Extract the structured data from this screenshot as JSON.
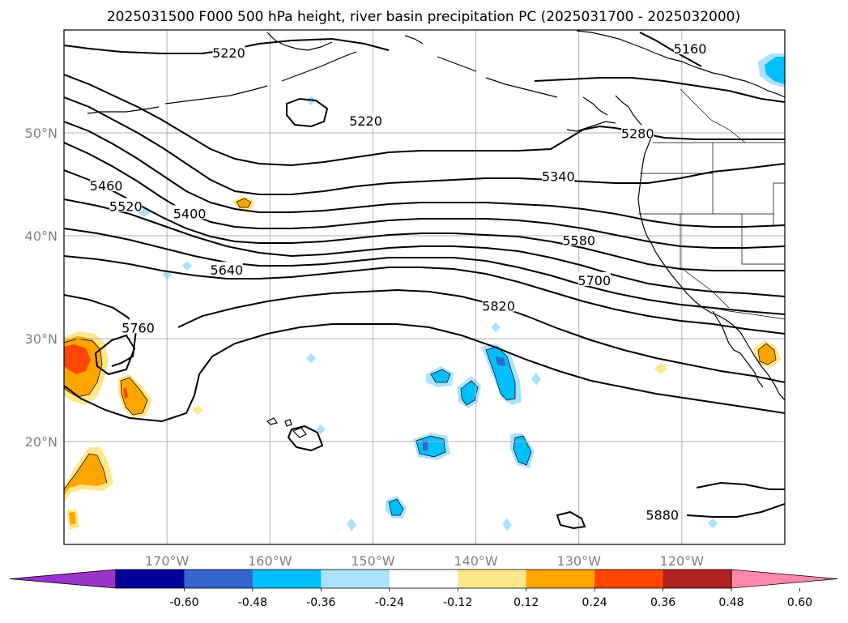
{
  "title": "2025031500 F000 500 hPa height, river basin precipitation PC (2025031700 - 2025032000)",
  "x_ticks": [
    {
      "lon": -170,
      "label": "170°W"
    },
    {
      "lon": -160,
      "label": "160°W"
    },
    {
      "lon": -150,
      "label": "150°W"
    },
    {
      "lon": -140,
      "label": "140°W"
    },
    {
      "lon": -130,
      "label": "130°W"
    },
    {
      "lon": -120,
      "label": "120°W"
    }
  ],
  "y_ticks": [
    {
      "lat": 50,
      "label": "50°N"
    },
    {
      "lat": 40,
      "label": "40°N"
    },
    {
      "lat": 30,
      "label": "30°N"
    },
    {
      "lat": 20,
      "label": "20°N"
    }
  ],
  "map_extent": {
    "lon_min": -180,
    "lon_max": -110,
    "lat_min": 10,
    "lat_max": 60
  },
  "contour_labels": [
    {
      "text": "5160",
      "lon": -119.2,
      "lat": 58.1
    },
    {
      "text": "5220",
      "lon": -164.0,
      "lat": 57.7
    },
    {
      "text": "5220",
      "lon": -150.7,
      "lat": 51.1
    },
    {
      "text": "5280",
      "lon": -124.3,
      "lat": 49.9
    },
    {
      "text": "5340",
      "lon": -132.0,
      "lat": 45.7
    },
    {
      "text": "5400",
      "lon": -167.8,
      "lat": 42.1
    },
    {
      "text": "5460",
      "lon": -175.9,
      "lat": 44.8
    },
    {
      "text": "5520",
      "lon": -174.0,
      "lat": 42.8
    },
    {
      "text": "5580",
      "lon": -130.0,
      "lat": 39.5
    },
    {
      "text": "5640",
      "lon": -164.2,
      "lat": 36.6
    },
    {
      "text": "5700",
      "lon": -128.5,
      "lat": 35.6
    },
    {
      "text": "5760",
      "lon": -172.8,
      "lat": 31.0
    },
    {
      "text": "5820",
      "lon": -137.8,
      "lat": 33.1
    },
    {
      "text": "5880",
      "lon": -121.9,
      "lat": 12.8
    }
  ],
  "colorbar": {
    "colors": [
      "#9933cc",
      "#000099",
      "#3366cc",
      "#00bfff",
      "#ade2ff",
      "#ffffff",
      "#ffe88c",
      "#ffa500",
      "#ff4500",
      "#b22222",
      "#ff88aa"
    ],
    "tick_labels": [
      "-0.60",
      "-0.48",
      "-0.36",
      "-0.24",
      "-0.12",
      "0.12",
      "0.24",
      "0.36",
      "0.48",
      "0.60"
    ],
    "extend": "both"
  }
}
